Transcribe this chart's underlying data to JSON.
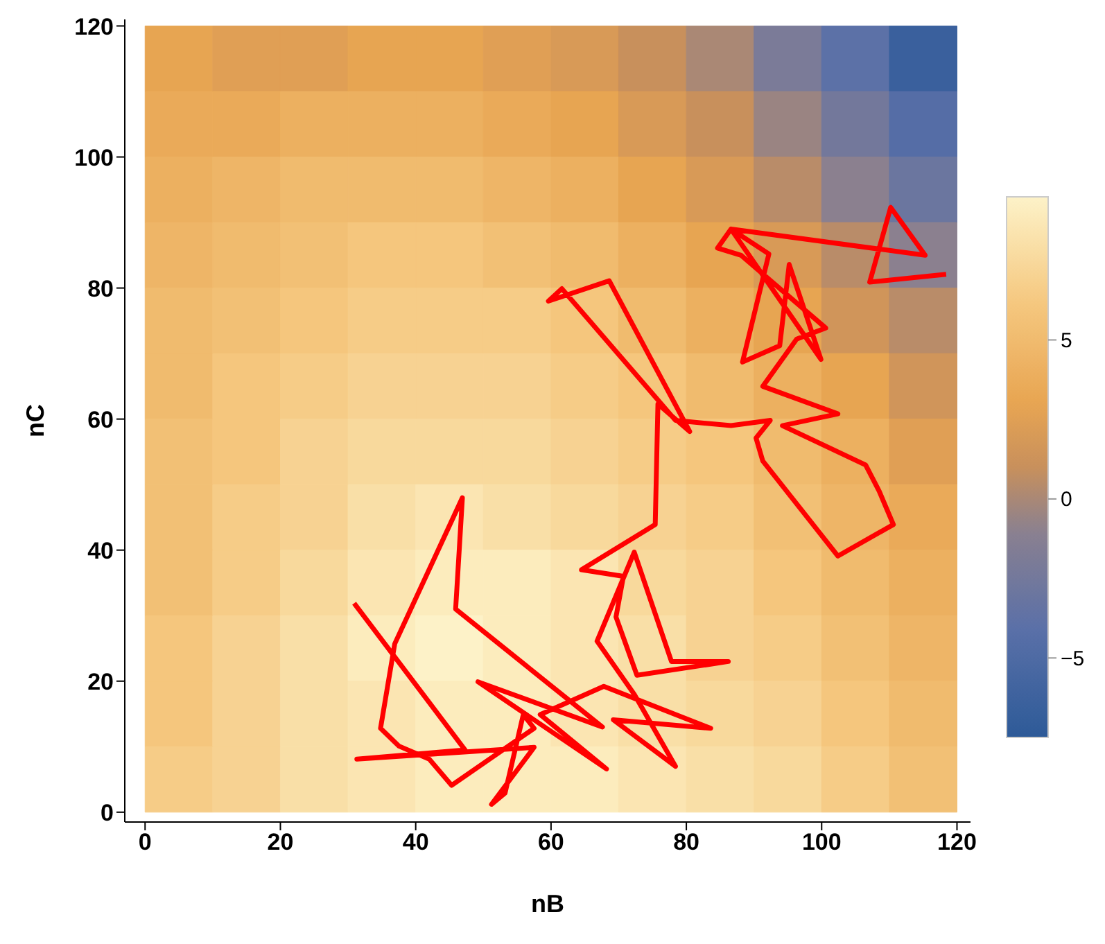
{
  "chart_data": {
    "type": "heatmap",
    "xlabel": "nB",
    "ylabel": "nC",
    "cells": [
      [
        3,
        2.5,
        2.5,
        3,
        3,
        2.5,
        2,
        1,
        0,
        -2,
        -4,
        -6.5
      ],
      [
        3.5,
        3.5,
        4,
        4,
        4,
        3.5,
        3,
        2,
        1,
        -0.5,
        -2.5,
        -4.5
      ],
      [
        4,
        4.5,
        5,
        5,
        5,
        4.5,
        4,
        3,
        2,
        0.5,
        -1,
        -3
      ],
      [
        4.5,
        5,
        5.5,
        6,
        6,
        5.5,
        5,
        4,
        3,
        2,
        0.5,
        -1
      ],
      [
        5,
        5.5,
        6,
        6.5,
        6.5,
        6.5,
        6,
        5,
        4,
        3,
        1.5,
        0.5
      ],
      [
        5,
        6,
        6.5,
        7,
        7,
        7,
        6.5,
        6,
        5,
        4,
        3,
        1.5
      ],
      [
        5.5,
        6,
        7,
        7.5,
        7.5,
        7.5,
        7,
        6.5,
        6,
        5,
        4,
        2.5
      ],
      [
        5.5,
        6.5,
        7,
        8,
        8.5,
        8,
        7.5,
        7,
        6.5,
        5.5,
        4.5,
        3.5
      ],
      [
        5.5,
        6.5,
        7.5,
        8.5,
        9,
        9,
        8.5,
        7.5,
        7,
        6,
        5,
        4
      ],
      [
        6,
        7,
        8,
        9,
        9.5,
        9,
        8.5,
        8,
        7,
        6.5,
        5.5,
        4.5
      ],
      [
        6,
        7,
        8,
        8.5,
        9,
        9,
        8.5,
        8,
        7.5,
        7,
        6,
        5
      ],
      [
        6.5,
        7,
        8,
        8.5,
        9,
        9,
        9,
        8.5,
        8,
        7.5,
        6.5,
        5.5
      ]
    ],
    "series": [
      {
        "type": "line",
        "color": "#ff0000",
        "marker": "none",
        "x": [
          30.9,
          47.3,
          31.3,
          57.5,
          51.2,
          53.2,
          55.9,
          57.5,
          45.3,
          42.0,
          37.5,
          34.8,
          36.9,
          46.9,
          45.9,
          67.6,
          49.2,
          68.2,
          58.4,
          67.8,
          83.6,
          69.2,
          78.4,
          72.3,
          66.8,
          72.3,
          77.8,
          86.2,
          72.7,
          69.6,
          70.7,
          64.5,
          75.4,
          75.8,
          80.5,
          68.6,
          59.6,
          61.6,
          78.4,
          86.6,
          92.4,
          90.3,
          91.3,
          102.4,
          110.6,
          108.5,
          106.5,
          94.2,
          102.4,
          91.3,
          96.3,
          100.6,
          88.1,
          84.6,
          86.6,
          99.9,
          95.2,
          93.8,
          88.3,
          92.2,
          86.6,
          115.3,
          110.2,
          107.1,
          118.4
        ],
        "values": [
          31.9,
          9.5,
          8.1,
          9.9,
          1.2,
          2.9,
          14.9,
          12.8,
          4.1,
          8.1,
          10.1,
          12.8,
          25.7,
          48.0,
          31.0,
          13.0,
          19.9,
          6.6,
          14.9,
          19.2,
          12.8,
          14.1,
          7.0,
          18.0,
          26.1,
          39.7,
          23.0,
          23.0,
          20.9,
          29.8,
          36.0,
          37.0,
          43.9,
          62.3,
          58.1,
          81.1,
          78.0,
          79.9,
          59.8,
          59.0,
          59.8,
          57.1,
          53.6,
          39.1,
          43.9,
          49.0,
          53.0,
          59.0,
          60.8,
          65.0,
          72.2,
          73.9,
          85.0,
          86.1,
          89.0,
          69.1,
          83.6,
          71.2,
          68.7,
          85.2,
          89.0,
          85.0,
          92.3,
          80.9,
          82.1
        ]
      }
    ],
    "clim": [
      -7.5,
      9.5
    ],
    "cticks": [
      -5,
      0,
      5
    ],
    "xlim": [
      -3,
      122
    ],
    "ylim": [
      -1.5,
      121
    ],
    "xticks": [
      0,
      20,
      40,
      60,
      80,
      100,
      120
    ],
    "yticks": [
      0,
      20,
      40,
      60,
      80,
      100,
      120
    ],
    "grid": false
  }
}
